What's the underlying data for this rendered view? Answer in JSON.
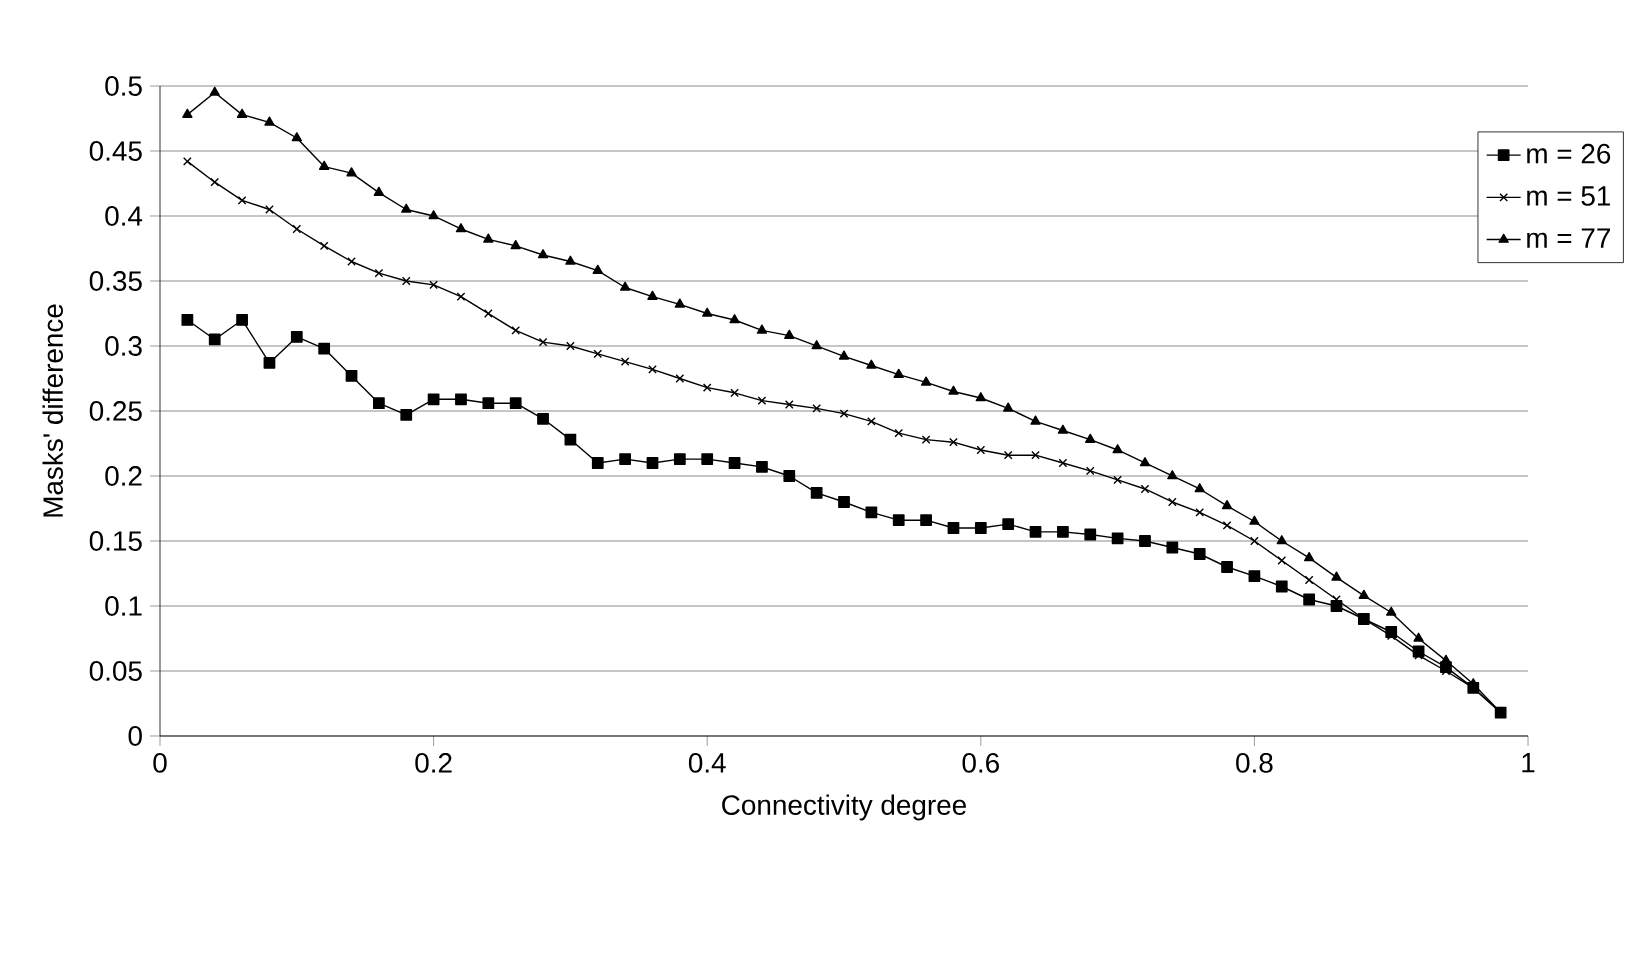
{
  "chart_data": {
    "type": "line",
    "xlabel": "Connectivity degree",
    "ylabel": "Masks' difference",
    "x": [
      0.02,
      0.04,
      0.06,
      0.08,
      0.1,
      0.12,
      0.14,
      0.16,
      0.18,
      0.2,
      0.22,
      0.24,
      0.26,
      0.28,
      0.3,
      0.32,
      0.34,
      0.36,
      0.38,
      0.4,
      0.42,
      0.44,
      0.46,
      0.48,
      0.5,
      0.52,
      0.54,
      0.56,
      0.58,
      0.6,
      0.62,
      0.64,
      0.66,
      0.68,
      0.7,
      0.72,
      0.74,
      0.76,
      0.78,
      0.8,
      0.82,
      0.84,
      0.86,
      0.88,
      0.9,
      0.92,
      0.94,
      0.96,
      0.98
    ],
    "series": [
      {
        "name": "m = 26",
        "color": "#000000",
        "marker": "square",
        "values": [
          0.32,
          0.305,
          0.32,
          0.287,
          0.307,
          0.298,
          0.277,
          0.256,
          0.247,
          0.259,
          0.259,
          0.256,
          0.256,
          0.244,
          0.228,
          0.21,
          0.213,
          0.21,
          0.213,
          0.213,
          0.21,
          0.207,
          0.2,
          0.187,
          0.18,
          0.172,
          0.166,
          0.166,
          0.16,
          0.16,
          0.163,
          0.157,
          0.157,
          0.155,
          0.152,
          0.15,
          0.145,
          0.14,
          0.13,
          0.123,
          0.115,
          0.105,
          0.1,
          0.09,
          0.08,
          0.065,
          0.053,
          0.037,
          0.018
        ]
      },
      {
        "name": "m = 51",
        "color": "#000000",
        "marker": "cross",
        "values": [
          0.442,
          0.426,
          0.412,
          0.405,
          0.39,
          0.377,
          0.365,
          0.356,
          0.35,
          0.347,
          0.338,
          0.325,
          0.312,
          0.303,
          0.3,
          0.294,
          0.288,
          0.282,
          0.275,
          0.268,
          0.264,
          0.258,
          0.255,
          0.252,
          0.248,
          0.242,
          0.233,
          0.228,
          0.226,
          0.22,
          0.216,
          0.216,
          0.21,
          0.204,
          0.197,
          0.19,
          0.18,
          0.172,
          0.162,
          0.15,
          0.135,
          0.12,
          0.105,
          0.09,
          0.077,
          0.062,
          0.05,
          0.037,
          0.018
        ]
      },
      {
        "name": "m = 77",
        "color": "#000000",
        "marker": "triangle",
        "values": [
          0.478,
          0.495,
          0.478,
          0.472,
          0.46,
          0.438,
          0.433,
          0.418,
          0.405,
          0.4,
          0.39,
          0.382,
          0.377,
          0.37,
          0.365,
          0.358,
          0.345,
          0.338,
          0.332,
          0.325,
          0.32,
          0.312,
          0.308,
          0.3,
          0.292,
          0.285,
          0.278,
          0.272,
          0.265,
          0.26,
          0.252,
          0.242,
          0.235,
          0.228,
          0.22,
          0.21,
          0.2,
          0.19,
          0.177,
          0.165,
          0.15,
          0.137,
          0.122,
          0.108,
          0.095,
          0.075,
          0.058,
          0.04,
          0.018
        ]
      }
    ],
    "xlim": [
      0,
      1
    ],
    "xticks": [
      0,
      0.2,
      0.4,
      0.6,
      0.8,
      1
    ],
    "ylim": [
      0,
      0.5
    ],
    "yticks": [
      0,
      0.05,
      0.1,
      0.15,
      0.2,
      0.25,
      0.3,
      0.35,
      0.4,
      0.45,
      0.5
    ],
    "grid": "y",
    "legend": "top right",
    "line_style": "solid"
  }
}
